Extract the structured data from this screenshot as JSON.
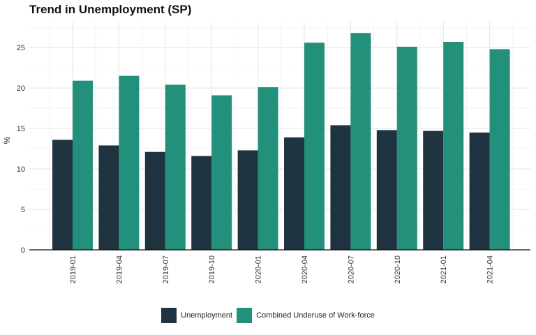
{
  "chart_data": {
    "type": "bar",
    "title": "Trend in Unemployment (SP)",
    "xlabel": "",
    "ylabel": "%",
    "categories": [
      "2019-01",
      "2019-04",
      "2019-07",
      "2019-10",
      "2020-01",
      "2020-04",
      "2020-07",
      "2020-10",
      "2021-01",
      "2021-04"
    ],
    "series": [
      {
        "name": "Unemployment",
        "color": "#1f3440",
        "values": [
          13.6,
          12.9,
          12.1,
          11.6,
          12.3,
          13.9,
          15.4,
          14.8,
          14.7,
          14.5
        ]
      },
      {
        "name": "Combined Underuse of Work-force",
        "color": "#23907b",
        "values": [
          20.9,
          21.5,
          20.4,
          19.1,
          20.1,
          25.6,
          26.8,
          25.1,
          25.7,
          24.8
        ]
      }
    ],
    "yticks": [
      "0",
      "5",
      "10",
      "15",
      "20",
      "25"
    ],
    "ylim": [
      0,
      28.2
    ],
    "grid": true,
    "legend_position": "bottom"
  }
}
